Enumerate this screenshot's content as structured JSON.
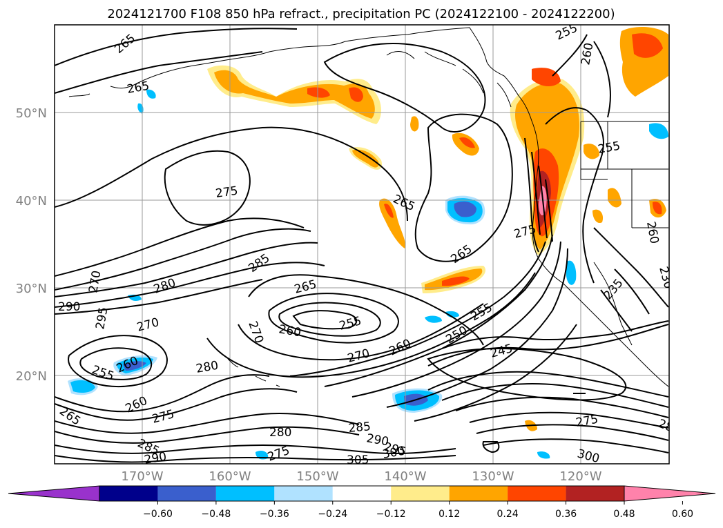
{
  "title": "2024121700 F108 850 hPa refract., precipitation PC (2024122100 - 2024122200)",
  "map": {
    "lat_labels": [
      "50°N",
      "40°N",
      "30°N",
      "20°N"
    ],
    "lon_labels": [
      "170°W",
      "160°W",
      "150°W",
      "140°W",
      "130°W",
      "120°W"
    ],
    "grid": true
  },
  "contour_labels": [
    {
      "text": "265",
      "region": "northwest"
    },
    {
      "text": "265",
      "region": "northwest-lower"
    },
    {
      "text": "255",
      "region": "north-coast"
    },
    {
      "text": "260",
      "region": "north-canada"
    },
    {
      "text": "275",
      "region": "central-west"
    },
    {
      "text": "265",
      "region": "central"
    },
    {
      "text": "255",
      "region": "pacific-northwest"
    },
    {
      "text": "265",
      "region": "central-east"
    },
    {
      "text": "275",
      "region": "california-coast"
    },
    {
      "text": "260",
      "region": "inland-west"
    },
    {
      "text": "285",
      "region": "west"
    },
    {
      "text": "280",
      "region": "west"
    },
    {
      "text": "270",
      "region": "far-west"
    },
    {
      "text": "290",
      "region": "far-west"
    },
    {
      "text": "295",
      "region": "far-west"
    },
    {
      "text": "265",
      "region": "center"
    },
    {
      "text": "270",
      "region": "center"
    },
    {
      "text": "260",
      "region": "center"
    },
    {
      "text": "255",
      "region": "center"
    },
    {
      "text": "255",
      "region": "east"
    },
    {
      "text": "250",
      "region": "east"
    },
    {
      "text": "230",
      "region": "east"
    },
    {
      "text": "235",
      "region": "inland"
    },
    {
      "text": "270",
      "region": "southwest"
    },
    {
      "text": "280",
      "region": "southwest"
    },
    {
      "text": "255",
      "region": "southwest"
    },
    {
      "text": "260",
      "region": "southwest"
    },
    {
      "text": "270",
      "region": "south-center"
    },
    {
      "text": "260",
      "region": "south-center"
    },
    {
      "text": "245",
      "region": "southeast"
    },
    {
      "text": "265",
      "region": "south-west-corner"
    },
    {
      "text": "260",
      "region": "south-west"
    },
    {
      "text": "275",
      "region": "south-west"
    },
    {
      "text": "280",
      "region": "south"
    },
    {
      "text": "285",
      "region": "south"
    },
    {
      "text": "290",
      "region": "south"
    },
    {
      "text": "295",
      "region": "south"
    },
    {
      "text": "300",
      "region": "south"
    },
    {
      "text": "305",
      "region": "south"
    },
    {
      "text": "275",
      "region": "south"
    },
    {
      "text": "285",
      "region": "south-west"
    },
    {
      "text": "290",
      "region": "south-west"
    },
    {
      "text": "275",
      "region": "southeast"
    },
    {
      "text": "300",
      "region": "southeast"
    },
    {
      "text": "28",
      "region": "southeast-edge"
    }
  ],
  "colorbar": {
    "ticks": [
      "−0.60",
      "−0.48",
      "−0.36",
      "−0.24",
      "−0.12",
      "0.12",
      "0.24",
      "0.36",
      "0.48",
      "0.60"
    ],
    "colors": [
      "#9932CC",
      "#00008B",
      "#3A5FCD",
      "#00BFFF",
      "#B0E2FF",
      "#FFFFFF",
      "#FFEC8B",
      "#FFA500",
      "#FF4500",
      "#B22222",
      "#FF82AB"
    ]
  }
}
